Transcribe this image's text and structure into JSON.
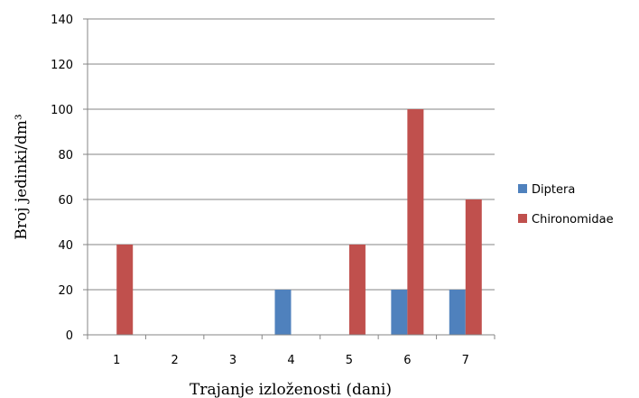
{
  "chart_data": {
    "type": "bar",
    "categories": [
      "1",
      "2",
      "3",
      "4",
      "5",
      "6",
      "7"
    ],
    "series": [
      {
        "name": "Diptera",
        "values": [
          0,
          0,
          0,
          20,
          0,
          20,
          20
        ],
        "color": "#4F81BD"
      },
      {
        "name": "Chironomidae",
        "values": [
          40,
          0,
          0,
          0,
          40,
          100,
          60
        ],
        "color": "#C0504D"
      }
    ],
    "yticks": [
      0,
      20,
      40,
      60,
      80,
      100,
      120,
      140
    ],
    "ylim": [
      0,
      140
    ],
    "xlabel": "Trajanje izloženosti (dani)",
    "ylabel": "Broj jedinki/dm³",
    "grid": true,
    "legend_position": "right"
  }
}
